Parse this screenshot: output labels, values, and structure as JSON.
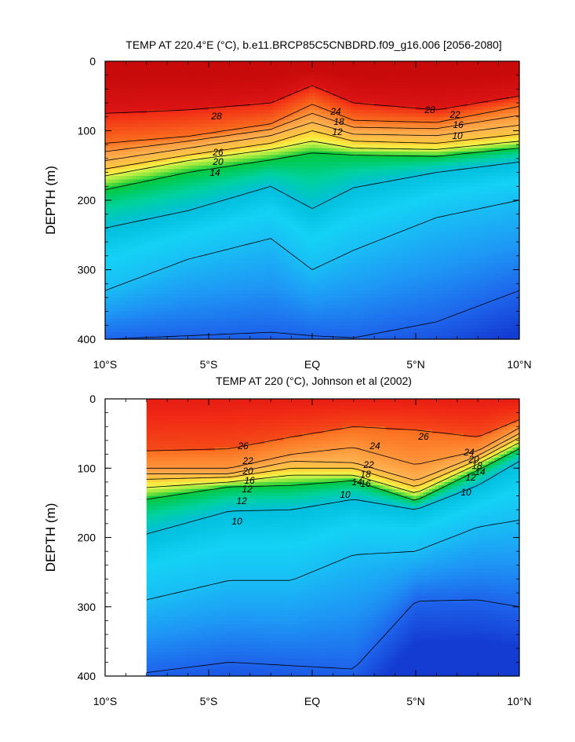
{
  "chart_data": [
    {
      "type": "heatmap",
      "subtype": "filled-contour",
      "title": "TEMP AT 220.4°E (°C), b.e11.BRCP85C5CNBDRD.f09_g16.006 [2056-2080]",
      "xlabel": "",
      "ylabel": "DEPTH (m)",
      "x_ticks": [
        "10°S",
        "5°S",
        "EQ",
        "5°N",
        "10°N"
      ],
      "y_ticks": [
        "0",
        "100",
        "200",
        "300",
        "400"
      ],
      "xlim": [
        -10,
        10
      ],
      "ylim": [
        400,
        0
      ],
      "y_reversed": true,
      "contour_labels": [
        "28",
        "28",
        "26",
        "24",
        "22",
        "20",
        "18",
        "16",
        "14",
        "12",
        "10"
      ],
      "isotherms": [
        {
          "level": 28,
          "x": [
            -10,
            -6,
            -2,
            0,
            2,
            6,
            10
          ],
          "y": [
            75,
            70,
            60,
            35,
            60,
            70,
            50
          ]
        },
        {
          "level": 26,
          "x": [
            -10,
            -6,
            -2,
            0,
            2,
            6,
            10
          ],
          "y": [
            118,
            108,
            90,
            62,
            85,
            88,
            65
          ]
        },
        {
          "level": 24,
          "x": [
            -10,
            -6,
            -2,
            0,
            2,
            6,
            10
          ],
          "y": [
            130,
            115,
            98,
            75,
            95,
            97,
            78
          ]
        },
        {
          "level": 22,
          "x": [
            -10,
            -6,
            -2,
            0,
            2,
            6,
            10
          ],
          "y": [
            143,
            125,
            107,
            88,
            105,
            107,
            92
          ]
        },
        {
          "level": 20,
          "x": [
            -10,
            -6,
            -2,
            0,
            2,
            6,
            10
          ],
          "y": [
            155,
            135,
            118,
            100,
            115,
            118,
            105
          ]
        },
        {
          "level": 18,
          "x": [
            -10,
            -6,
            -2,
            0,
            2,
            6,
            10
          ],
          "y": [
            165,
            143,
            127,
            115,
            125,
            127,
            115
          ]
        },
        {
          "level": 16,
          "x": [
            -10,
            -6,
            -2,
            0,
            2,
            6,
            10
          ],
          "y": [
            185,
            160,
            142,
            132,
            135,
            137,
            125
          ]
        },
        {
          "level": 14,
          "x": [
            -10,
            -6,
            -2,
            0,
            2,
            6,
            10
          ],
          "y": [
            240,
            215,
            180,
            212,
            182,
            160,
            145
          ]
        },
        {
          "level": 12,
          "x": [
            -10,
            -6,
            -2,
            0,
            2,
            6,
            10
          ],
          "y": [
            330,
            285,
            255,
            300,
            272,
            225,
            200
          ]
        },
        {
          "level": 10,
          "x": [
            -10,
            -6,
            -2,
            0,
            2,
            6,
            10
          ],
          "y": [
            400,
            395,
            390,
            395,
            398,
            375,
            330
          ]
        }
      ]
    },
    {
      "type": "heatmap",
      "subtype": "filled-contour",
      "title": "TEMP AT 220 (°C), Johnson et al (2002)",
      "xlabel": "",
      "ylabel": "DEPTH (m)",
      "x_ticks": [
        "10°S",
        "5°S",
        "EQ",
        "5°N",
        "10°N"
      ],
      "y_ticks": [
        "0",
        "100",
        "200",
        "300",
        "400"
      ],
      "xlim": [
        -10,
        10
      ],
      "ylim": [
        400,
        0
      ],
      "y_reversed": true,
      "data_x_range": [
        -8,
        10
      ],
      "contour_labels": [
        "26",
        "26",
        "24",
        "24",
        "22",
        "22",
        "20",
        "20",
        "18",
        "18",
        "16",
        "16",
        "14",
        "14",
        "12",
        "12",
        "12",
        "10",
        "10",
        "10"
      ],
      "isotherms": [
        {
          "level": 26,
          "x": [
            -8,
            -4,
            -1,
            2,
            5,
            8,
            10
          ],
          "y": [
            75,
            72,
            55,
            40,
            45,
            55,
            30
          ]
        },
        {
          "level": 24,
          "x": [
            -8,
            -4,
            -1,
            2,
            5,
            8,
            10
          ],
          "y": [
            100,
            100,
            80,
            70,
            95,
            75,
            42
          ]
        },
        {
          "level": 22,
          "x": [
            -8,
            -4,
            -1,
            2,
            5,
            8,
            10
          ],
          "y": [
            108,
            108,
            90,
            92,
            118,
            82,
            50
          ]
        },
        {
          "level": 20,
          "x": [
            -8,
            -4,
            -1,
            2,
            5,
            8,
            10
          ],
          "y": [
            116,
            113,
            100,
            100,
            127,
            88,
            56
          ]
        },
        {
          "level": 18,
          "x": [
            -8,
            -4,
            -1,
            2,
            5,
            8,
            10
          ],
          "y": [
            128,
            120,
            110,
            110,
            136,
            94,
            63
          ]
        },
        {
          "level": 16,
          "x": [
            -8,
            -4,
            -1,
            2,
            5,
            8,
            10
          ],
          "y": [
            145,
            127,
            125,
            118,
            147,
            103,
            72
          ]
        },
        {
          "level": 14,
          "x": [
            -8,
            -4,
            -1,
            2,
            5,
            8,
            10
          ],
          "y": [
            195,
            162,
            160,
            145,
            160,
            125,
            90
          ]
        },
        {
          "level": 12,
          "x": [
            -8,
            -4,
            -1,
            2,
            5,
            8,
            10
          ],
          "y": [
            290,
            262,
            262,
            225,
            220,
            185,
            175
          ]
        },
        {
          "level": 10,
          "x": [
            -8,
            -4,
            -1,
            2,
            5,
            8,
            10
          ],
          "y": [
            395,
            380,
            385,
            390,
            292,
            290,
            300
          ]
        }
      ]
    }
  ]
}
